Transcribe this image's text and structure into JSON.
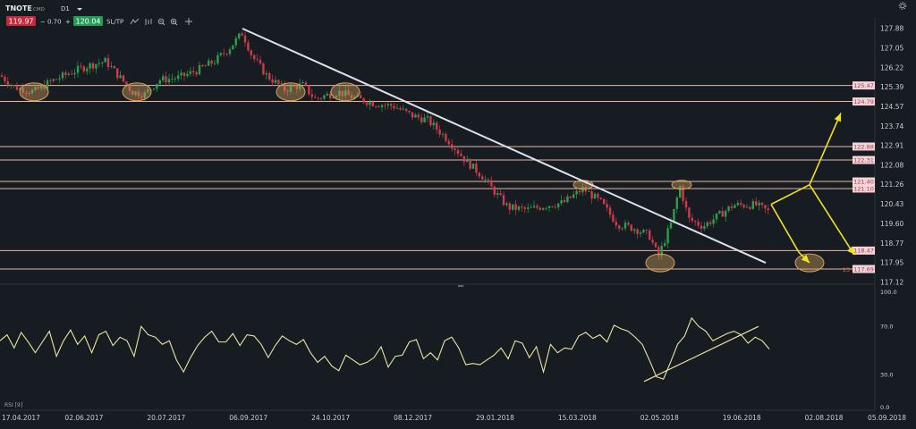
{
  "toolbar": {
    "symbol": "TNOTE",
    "market": "CMD",
    "timeframe": "D1",
    "sell_price": "119.97",
    "minus": "−",
    "spread": "0.70",
    "plus": "+",
    "buy_price": "120.04",
    "sltp": "SL/TP",
    "rsi_label": "RSI [9]",
    "sell_color": "#c8283c",
    "buy_color": "#1f9d55"
  },
  "chart_data": [
    {
      "type": "candlestick",
      "title": "",
      "y_ticks": [
        "127.88",
        "127.05",
        "126.22",
        "125.39",
        "124.57",
        "123.74",
        "122.91",
        "122.08",
        "121.26",
        "120.43",
        "119.60",
        "118.77",
        "117.95",
        "117.12"
      ],
      "x_ticks": [
        "17.04.2017",
        "02.06.2017",
        "20.07.2017",
        "06.09.2017",
        "24.10.2017",
        "08.12.2017",
        "29.01.2018",
        "15.03.2018",
        "02.05.2018",
        "19.06.2018",
        "02.08.2018",
        "05.09.2018"
      ],
      "ylim": [
        117.12,
        127.88
      ],
      "up_color": "#2e9e4a",
      "down_color": "#d23a4a",
      "grid": false,
      "price_path": [
        [
          0,
          125.9
        ],
        [
          16,
          125.4
        ],
        [
          38,
          125.2
        ],
        [
          55,
          125.6
        ],
        [
          78,
          126.0
        ],
        [
          98,
          126.3
        ],
        [
          118,
          126.5
        ],
        [
          132,
          125.9
        ],
        [
          148,
          125.2
        ],
        [
          162,
          125.1
        ],
        [
          178,
          125.7
        ],
        [
          200,
          125.8
        ],
        [
          220,
          126.1
        ],
        [
          240,
          126.5
        ],
        [
          255,
          127.0
        ],
        [
          271,
          127.7
        ],
        [
          282,
          126.7
        ],
        [
          298,
          125.9
        ],
        [
          318,
          125.3
        ],
        [
          338,
          125.5
        ],
        [
          352,
          124.9
        ],
        [
          378,
          125.2
        ],
        [
          400,
          124.9
        ],
        [
          420,
          124.7
        ],
        [
          440,
          124.6
        ],
        [
          460,
          124.2
        ],
        [
          478,
          124.0
        ],
        [
          500,
          123.2
        ],
        [
          520,
          122.3
        ],
        [
          540,
          121.6
        ],
        [
          552,
          121.0
        ],
        [
          568,
          120.3
        ],
        [
          590,
          120.2
        ],
        [
          612,
          120.4
        ],
        [
          630,
          120.5
        ],
        [
          652,
          121.1
        ],
        [
          672,
          120.5
        ],
        [
          690,
          119.6
        ],
        [
          710,
          119.4
        ],
        [
          726,
          119.1
        ],
        [
          736,
          118.2
        ],
        [
          750,
          119.6
        ],
        [
          760,
          121.2
        ],
        [
          770,
          119.8
        ],
        [
          786,
          119.5
        ],
        [
          805,
          120.0
        ],
        [
          820,
          120.4
        ],
        [
          845,
          120.4
        ],
        [
          860,
          120.1
        ]
      ],
      "horizontal_levels": [
        {
          "value": 125.47,
          "label": "125.47"
        },
        {
          "value": 124.79,
          "label": "124.79"
        },
        {
          "value": 122.88,
          "label": "122.88"
        },
        {
          "value": 122.31,
          "label": "122.31"
        },
        {
          "value": 121.4,
          "label": "121.40"
        },
        {
          "value": 121.1,
          "label": "121.10"
        },
        {
          "value": 118.47,
          "label": "118.47"
        },
        {
          "value": 117.69,
          "label": "117.69"
        }
      ],
      "level_13": {
        "value": 117.69,
        "prefix": "13"
      },
      "trendline": {
        "from": [
          271,
          127.88
        ],
        "to": [
          856,
          117.95
        ]
      },
      "highlight_circles": [
        [
          38,
          125.2
        ],
        [
          153,
          125.2
        ],
        [
          325,
          125.2
        ],
        [
          386,
          125.2
        ],
        [
          652,
          121.26
        ],
        [
          762,
          121.26
        ],
        [
          738,
          117.95
        ],
        [
          905,
          117.95
        ]
      ],
      "forecast_paths": [
        [
          [
            862,
            120.43
          ],
          [
            905,
            121.26
          ],
          [
            940,
            124.3
          ]
        ],
        [
          [
            862,
            120.43
          ],
          [
            893,
            118.4
          ],
          [
            905,
            117.95
          ]
        ],
        [
          [
            905,
            121.26
          ],
          [
            952,
            118.47
          ],
          [
            956,
            118.3
          ]
        ]
      ],
      "forecast_color": "#f3e21a",
      "trendline_color": "#dde2ea",
      "level_color": "#e8b7a2"
    },
    {
      "type": "line",
      "series": [
        {
          "name": "RSI [9]",
          "values": [
            58,
            63,
            52,
            65,
            57,
            48,
            57,
            66,
            45,
            58,
            67,
            55,
            62,
            48,
            63,
            66,
            54,
            61,
            58,
            45,
            70,
            63,
            61,
            55,
            58,
            42,
            32,
            44,
            54,
            61,
            66,
            57,
            57,
            64,
            54,
            63,
            62,
            55,
            44,
            54,
            62,
            58,
            55,
            59,
            48,
            40,
            45,
            37,
            33,
            46,
            42,
            38,
            40,
            44,
            53,
            36,
            45,
            46,
            57,
            59,
            43,
            48,
            42,
            58,
            61,
            52,
            38,
            39,
            38,
            42,
            46,
            52,
            43,
            58,
            56,
            44,
            53,
            32,
            55,
            48,
            52,
            51,
            62,
            65,
            60,
            63,
            57,
            71,
            68,
            66,
            61,
            55,
            42,
            28,
            26,
            40,
            55,
            62,
            77,
            70,
            66,
            58,
            61,
            64,
            66,
            63,
            56,
            61,
            58,
            51
          ]
        }
      ],
      "ylim": [
        0,
        100
      ],
      "y_ticks": [
        "100.0",
        "70.0",
        "30.0",
        "0.0"
      ],
      "support_line": {
        "from": [
          0.12,
          24
        ],
        "to": [
          0.852,
          70
        ]
      },
      "line_color": "#ece4a0"
    }
  ]
}
